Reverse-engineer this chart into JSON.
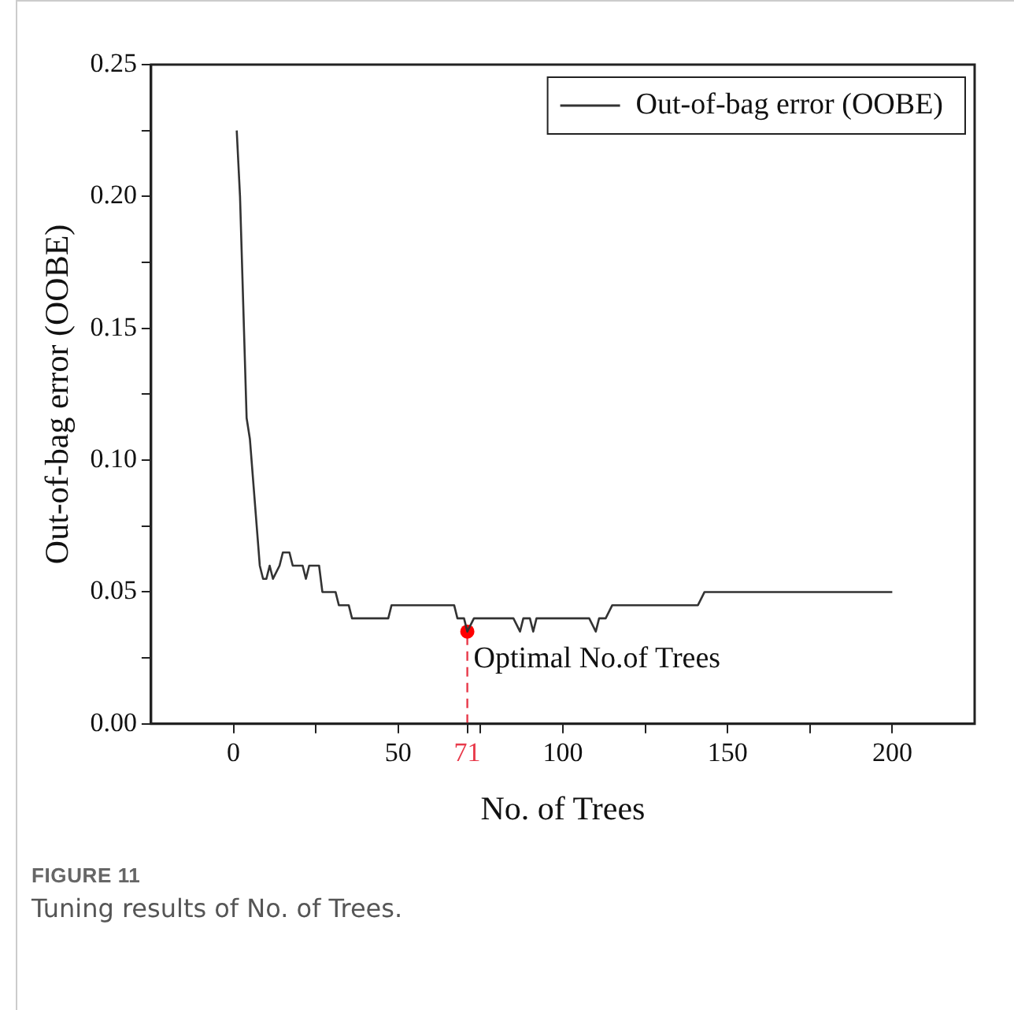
{
  "chart_data": {
    "type": "line",
    "xlabel": "No. of Trees",
    "ylabel": "Out-of-bag error (OOBE)",
    "xlim": [
      -25,
      225
    ],
    "xticks": [
      0,
      {
        "value": 25,
        "label": null
      },
      50,
      71,
      {
        "value": 75,
        "label": null
      },
      100,
      {
        "value": 125,
        "label": null
      },
      150,
      {
        "value": 175,
        "label": null
      },
      200
    ],
    "ylim": [
      0,
      0.25
    ],
    "yticks": [
      "0.00",
      {
        "value": 0.025,
        "label": null
      },
      {
        "value": 0.05,
        "label": "0.05"
      },
      {
        "value": 0.075,
        "label": null
      },
      {
        "value": 0.1,
        "label": "0.10"
      },
      {
        "value": 0.125,
        "label": null
      },
      {
        "value": 0.15,
        "label": "0.15"
      },
      {
        "value": 0.175,
        "label": null
      },
      {
        "value": 0.2,
        "label": "0.20"
      },
      {
        "value": 0.225,
        "label": null
      },
      {
        "value": 0.25,
        "label": "0.25"
      }
    ],
    "grid": false,
    "legend": "top right",
    "marker": "none",
    "line_style": "solid",
    "series": [
      {
        "name": "Out-of-bag error (OOBE)",
        "color": "#333333",
        "x": [
          1,
          2,
          4,
          5,
          8,
          9,
          10,
          11,
          12,
          14,
          15,
          17,
          18,
          21,
          22,
          23,
          26,
          27,
          31,
          32,
          35,
          36,
          47,
          48,
          67,
          68,
          70,
          71,
          73,
          85,
          87,
          88,
          90,
          91,
          92,
          108,
          110,
          111,
          113,
          115,
          141,
          143,
          200
        ],
        "values": [
          0.225,
          0.2,
          0.116,
          0.108,
          0.06,
          0.055,
          0.055,
          0.06,
          0.055,
          0.06,
          0.065,
          0.065,
          0.06,
          0.06,
          0.055,
          0.06,
          0.06,
          0.05,
          0.05,
          0.045,
          0.045,
          0.04,
          0.04,
          0.045,
          0.045,
          0.04,
          0.04,
          0.035,
          0.04,
          0.04,
          0.035,
          0.04,
          0.04,
          0.035,
          0.04,
          0.04,
          0.035,
          0.04,
          0.04,
          0.045,
          0.045,
          0.05,
          0.05
        ]
      },
      {
        "type": "scatter",
        "color": "#ff0000",
        "marker": "circle",
        "x": [
          71
        ],
        "values": [
          0.035
        ]
      }
    ],
    "ref_lines": [
      {
        "axis": "x",
        "value": 71,
        "color": "#e8394a",
        "line_style": "dashed"
      }
    ],
    "annotations": [
      {
        "text": "Optimal No.of Trees",
        "x": 71,
        "y": 0.035
      },
      "FIGURE 11",
      "Tuning results of No. of Trees."
    ]
  }
}
